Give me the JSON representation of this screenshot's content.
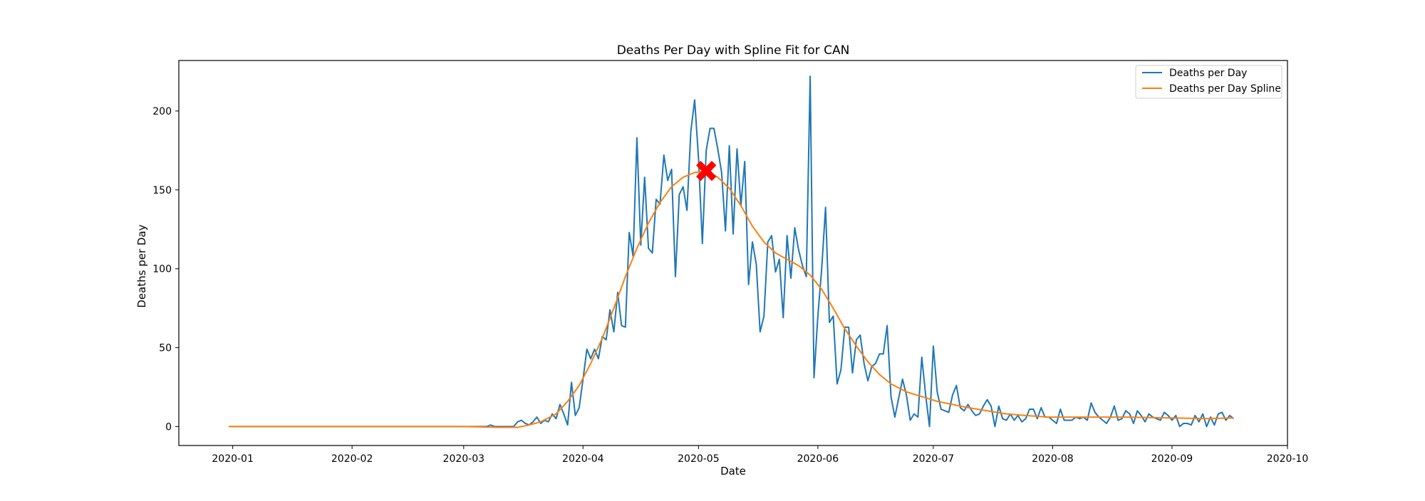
{
  "chart_data": {
    "type": "line",
    "title": "Deaths Per Day with Spline Fit for CAN",
    "xlabel": "Date",
    "ylabel": "Deaths per Day",
    "x_axis_type": "date",
    "xlim": [
      "2019-12-18",
      "2020-10-01"
    ],
    "ylim": [
      -12,
      232
    ],
    "x_ticks": [
      "2020-01-01",
      "2020-02-01",
      "2020-03-01",
      "2020-04-01",
      "2020-05-01",
      "2020-06-01",
      "2020-07-01",
      "2020-08-01",
      "2020-09-01",
      "2020-10-01"
    ],
    "x_tick_labels": [
      "2020-01",
      "2020-02",
      "2020-03",
      "2020-04",
      "2020-05",
      "2020-06",
      "2020-07",
      "2020-08",
      "2020-09",
      "2020-10"
    ],
    "y_ticks": [
      0,
      50,
      100,
      150,
      200
    ],
    "y_tick_labels": [
      "0",
      "50",
      "100",
      "150",
      "200"
    ],
    "legend_position": "top-right",
    "grid": false,
    "series": [
      {
        "name": "Deaths per Day",
        "color": "#1f77b4",
        "points": [
          [
            "2019-12-31",
            0
          ],
          [
            "2020-03-07",
            0
          ],
          [
            "2020-03-08",
            1
          ],
          [
            "2020-03-09",
            0
          ],
          [
            "2020-03-14",
            0
          ],
          [
            "2020-03-15",
            3
          ],
          [
            "2020-03-16",
            4
          ],
          [
            "2020-03-17",
            2
          ],
          [
            "2020-03-18",
            1
          ],
          [
            "2020-03-19",
            3
          ],
          [
            "2020-03-20",
            6
          ],
          [
            "2020-03-21",
            2
          ],
          [
            "2020-03-22",
            4
          ],
          [
            "2020-03-23",
            3
          ],
          [
            "2020-03-24",
            8
          ],
          [
            "2020-03-25",
            5
          ],
          [
            "2020-03-26",
            14
          ],
          [
            "2020-03-27",
            8
          ],
          [
            "2020-03-28",
            1
          ],
          [
            "2020-03-29",
            28
          ],
          [
            "2020-03-30",
            7
          ],
          [
            "2020-03-31",
            12
          ],
          [
            "2020-04-01",
            30
          ],
          [
            "2020-04-02",
            49
          ],
          [
            "2020-04-03",
            43
          ],
          [
            "2020-04-04",
            49
          ],
          [
            "2020-04-05",
            43
          ],
          [
            "2020-04-06",
            57
          ],
          [
            "2020-04-07",
            55
          ],
          [
            "2020-04-08",
            74
          ],
          [
            "2020-04-09",
            60
          ],
          [
            "2020-04-10",
            85
          ],
          [
            "2020-04-11",
            64
          ],
          [
            "2020-04-12",
            63
          ],
          [
            "2020-04-13",
            123
          ],
          [
            "2020-04-14",
            108
          ],
          [
            "2020-04-15",
            183
          ],
          [
            "2020-04-16",
            115
          ],
          [
            "2020-04-17",
            158
          ],
          [
            "2020-04-18",
            113
          ],
          [
            "2020-04-19",
            110
          ],
          [
            "2020-04-20",
            144
          ],
          [
            "2020-04-21",
            141
          ],
          [
            "2020-04-22",
            172
          ],
          [
            "2020-04-23",
            156
          ],
          [
            "2020-04-24",
            163
          ],
          [
            "2020-04-25",
            95
          ],
          [
            "2020-04-26",
            147
          ],
          [
            "2020-04-27",
            152
          ],
          [
            "2020-04-28",
            137
          ],
          [
            "2020-04-29",
            187
          ],
          [
            "2020-04-30",
            207
          ],
          [
            "2020-05-01",
            170
          ],
          [
            "2020-05-02",
            116
          ],
          [
            "2020-05-03",
            175
          ],
          [
            "2020-05-04",
            189
          ],
          [
            "2020-05-05",
            189
          ],
          [
            "2020-05-06",
            176
          ],
          [
            "2020-05-07",
            161
          ],
          [
            "2020-05-08",
            124
          ],
          [
            "2020-05-09",
            178
          ],
          [
            "2020-05-10",
            122
          ],
          [
            "2020-05-11",
            176
          ],
          [
            "2020-05-12",
            140
          ],
          [
            "2020-05-13",
            168
          ],
          [
            "2020-05-14",
            90
          ],
          [
            "2020-05-15",
            117
          ],
          [
            "2020-05-16",
            103
          ],
          [
            "2020-05-17",
            60
          ],
          [
            "2020-05-18",
            70
          ],
          [
            "2020-05-19",
            117
          ],
          [
            "2020-05-20",
            121
          ],
          [
            "2020-05-21",
            98
          ],
          [
            "2020-05-22",
            106
          ],
          [
            "2020-05-23",
            69
          ],
          [
            "2020-05-24",
            121
          ],
          [
            "2020-05-25",
            94
          ],
          [
            "2020-05-26",
            126
          ],
          [
            "2020-05-27",
            112
          ],
          [
            "2020-05-28",
            102
          ],
          [
            "2020-05-29",
            95
          ],
          [
            "2020-05-30",
            222
          ],
          [
            "2020-05-31",
            31
          ],
          [
            "2020-06-01",
            70
          ],
          [
            "2020-06-02",
            100
          ],
          [
            "2020-06-03",
            139
          ],
          [
            "2020-06-04",
            66
          ],
          [
            "2020-06-05",
            70
          ],
          [
            "2020-06-06",
            27
          ],
          [
            "2020-06-07",
            36
          ],
          [
            "2020-06-08",
            63
          ],
          [
            "2020-06-09",
            63
          ],
          [
            "2020-06-10",
            34
          ],
          [
            "2020-06-11",
            55
          ],
          [
            "2020-06-12",
            58
          ],
          [
            "2020-06-13",
            40
          ],
          [
            "2020-06-14",
            29
          ],
          [
            "2020-06-15",
            38
          ],
          [
            "2020-06-16",
            40
          ],
          [
            "2020-06-17",
            46
          ],
          [
            "2020-06-18",
            46
          ],
          [
            "2020-06-19",
            64
          ],
          [
            "2020-06-20",
            19
          ],
          [
            "2020-06-21",
            6
          ],
          [
            "2020-06-22",
            18
          ],
          [
            "2020-06-23",
            30
          ],
          [
            "2020-06-24",
            20
          ],
          [
            "2020-06-25",
            4
          ],
          [
            "2020-06-26",
            8
          ],
          [
            "2020-06-27",
            6
          ],
          [
            "2020-06-28",
            44
          ],
          [
            "2020-06-29",
            20
          ],
          [
            "2020-06-30",
            0
          ],
          [
            "2020-07-01",
            51
          ],
          [
            "2020-07-02",
            22
          ],
          [
            "2020-07-03",
            11
          ],
          [
            "2020-07-04",
            10
          ],
          [
            "2020-07-05",
            9
          ],
          [
            "2020-07-06",
            20
          ],
          [
            "2020-07-07",
            26
          ],
          [
            "2020-07-08",
            12
          ],
          [
            "2020-07-09",
            10
          ],
          [
            "2020-07-10",
            14
          ],
          [
            "2020-07-11",
            10
          ],
          [
            "2020-07-12",
            7
          ],
          [
            "2020-07-13",
            8
          ],
          [
            "2020-07-14",
            13
          ],
          [
            "2020-07-15",
            17
          ],
          [
            "2020-07-16",
            13
          ],
          [
            "2020-07-17",
            0
          ],
          [
            "2020-07-18",
            13
          ],
          [
            "2020-07-19",
            5
          ],
          [
            "2020-07-20",
            4
          ],
          [
            "2020-07-21",
            8
          ],
          [
            "2020-07-22",
            4
          ],
          [
            "2020-07-23",
            7
          ],
          [
            "2020-07-24",
            3
          ],
          [
            "2020-07-25",
            5
          ],
          [
            "2020-07-26",
            11
          ],
          [
            "2020-07-27",
            11
          ],
          [
            "2020-07-28",
            5
          ],
          [
            "2020-07-29",
            12
          ],
          [
            "2020-07-30",
            6
          ],
          [
            "2020-07-31",
            6
          ],
          [
            "2020-08-01",
            4
          ],
          [
            "2020-08-02",
            2
          ],
          [
            "2020-08-03",
            11
          ],
          [
            "2020-08-04",
            4
          ],
          [
            "2020-08-05",
            4
          ],
          [
            "2020-08-06",
            4
          ],
          [
            "2020-08-07",
            6
          ],
          [
            "2020-08-08",
            5
          ],
          [
            "2020-08-09",
            6
          ],
          [
            "2020-08-10",
            4
          ],
          [
            "2020-08-11",
            15
          ],
          [
            "2020-08-12",
            9
          ],
          [
            "2020-08-13",
            6
          ],
          [
            "2020-08-14",
            4
          ],
          [
            "2020-08-15",
            2
          ],
          [
            "2020-08-16",
            6
          ],
          [
            "2020-08-17",
            13
          ],
          [
            "2020-08-18",
            4
          ],
          [
            "2020-08-19",
            5
          ],
          [
            "2020-08-20",
            10
          ],
          [
            "2020-08-21",
            8
          ],
          [
            "2020-08-22",
            2
          ],
          [
            "2020-08-23",
            10
          ],
          [
            "2020-08-24",
            7
          ],
          [
            "2020-08-25",
            3
          ],
          [
            "2020-08-26",
            8
          ],
          [
            "2020-08-27",
            6
          ],
          [
            "2020-08-28",
            5
          ],
          [
            "2020-08-29",
            4
          ],
          [
            "2020-08-30",
            9
          ],
          [
            "2020-08-31",
            7
          ],
          [
            "2020-09-01",
            4
          ],
          [
            "2020-09-02",
            7
          ],
          [
            "2020-09-03",
            0
          ],
          [
            "2020-09-04",
            2
          ],
          [
            "2020-09-05",
            2
          ],
          [
            "2020-09-06",
            1
          ],
          [
            "2020-09-07",
            7
          ],
          [
            "2020-09-08",
            3
          ],
          [
            "2020-09-09",
            8
          ],
          [
            "2020-09-10",
            0
          ],
          [
            "2020-09-11",
            6
          ],
          [
            "2020-09-12",
            1
          ],
          [
            "2020-09-13",
            8
          ],
          [
            "2020-09-14",
            9
          ],
          [
            "2020-09-15",
            4
          ],
          [
            "2020-09-16",
            7
          ],
          [
            "2020-09-17",
            5
          ]
        ]
      },
      {
        "name": "Deaths per Day Spline",
        "color": "#ff7f0e",
        "points": [
          [
            "2019-12-31",
            0
          ],
          [
            "2020-03-01",
            0
          ],
          [
            "2020-03-10",
            -0.5
          ],
          [
            "2020-03-15",
            -0.5
          ],
          [
            "2020-03-18",
            1
          ],
          [
            "2020-03-21",
            3
          ],
          [
            "2020-03-25",
            8
          ],
          [
            "2020-03-28",
            16
          ],
          [
            "2020-03-31",
            26
          ],
          [
            "2020-04-03",
            40
          ],
          [
            "2020-04-06",
            56
          ],
          [
            "2020-04-09",
            75
          ],
          [
            "2020-04-12",
            95
          ],
          [
            "2020-04-15",
            113
          ],
          [
            "2020-04-18",
            129
          ],
          [
            "2020-04-21",
            142
          ],
          [
            "2020-04-24",
            152
          ],
          [
            "2020-04-27",
            158
          ],
          [
            "2020-04-30",
            161
          ],
          [
            "2020-05-03",
            162
          ],
          [
            "2020-05-06",
            158
          ],
          [
            "2020-05-09",
            151
          ],
          [
            "2020-05-12",
            140
          ],
          [
            "2020-05-15",
            127
          ],
          [
            "2020-05-18",
            117
          ],
          [
            "2020-05-21",
            110
          ],
          [
            "2020-05-24",
            106
          ],
          [
            "2020-05-27",
            102
          ],
          [
            "2020-05-30",
            96
          ],
          [
            "2020-06-02",
            87
          ],
          [
            "2020-06-05",
            75
          ],
          [
            "2020-06-08",
            62
          ],
          [
            "2020-06-11",
            51
          ],
          [
            "2020-06-14",
            41
          ],
          [
            "2020-06-17",
            33
          ],
          [
            "2020-06-20",
            27
          ],
          [
            "2020-06-24",
            22
          ],
          [
            "2020-06-28",
            19
          ],
          [
            "2020-07-02",
            16
          ],
          [
            "2020-07-06",
            14
          ],
          [
            "2020-07-10",
            12
          ],
          [
            "2020-07-15",
            10
          ],
          [
            "2020-07-20",
            8
          ],
          [
            "2020-07-25",
            7
          ],
          [
            "2020-07-31",
            6
          ],
          [
            "2020-08-10",
            6
          ],
          [
            "2020-08-20",
            6
          ],
          [
            "2020-08-31",
            5.5
          ],
          [
            "2020-09-10",
            5
          ],
          [
            "2020-09-17",
            5.5
          ]
        ]
      }
    ],
    "peak_marker": {
      "date": "2020-05-03",
      "value": 162,
      "color": "#ff0000",
      "marker": "X"
    }
  }
}
